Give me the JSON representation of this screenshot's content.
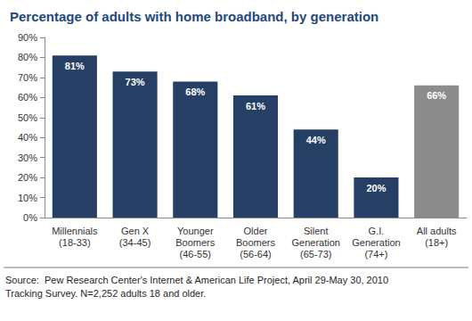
{
  "chart_data": {
    "type": "bar",
    "title": "Percentage of adults with home broadband, by generation",
    "categories": [
      "Millennials\n(18-33)",
      "Gen X\n(34-45)",
      "Younger\nBoomers\n(46-55)",
      "Older\nBoomers\n(56-64)",
      "Silent\nGeneration\n(65-73)",
      "G.I.\nGeneration\n(74+)",
      "All adults\n(18+)"
    ],
    "values": [
      81,
      73,
      68,
      61,
      44,
      20,
      66
    ],
    "value_labels": [
      "81%",
      "73%",
      "68%",
      "61%",
      "44%",
      "20%",
      "66%"
    ],
    "colors": [
      "#263f64",
      "#263f64",
      "#263f64",
      "#263f64",
      "#263f64",
      "#263f64",
      "#8c8c8c"
    ],
    "ylim": [
      0,
      90
    ],
    "yticks": [
      {
        "value": 0,
        "label": "0%"
      },
      {
        "value": 10,
        "label": "10%"
      },
      {
        "value": 20,
        "label": "20%"
      },
      {
        "value": 30,
        "label": "30%"
      },
      {
        "value": 40,
        "label": "40%"
      },
      {
        "value": 50,
        "label": "50%"
      },
      {
        "value": 60,
        "label": "60%"
      },
      {
        "value": 70,
        "label": "70%"
      },
      {
        "value": 80,
        "label": "80%"
      },
      {
        "value": 90,
        "label": "90%"
      }
    ],
    "grid": false,
    "data_labels": true,
    "source": "Source:  Pew Research Center's Internet & American Life Project, April 29-May 30, 2010\nTracking Survey. N=2,252 adults 18 and older."
  }
}
